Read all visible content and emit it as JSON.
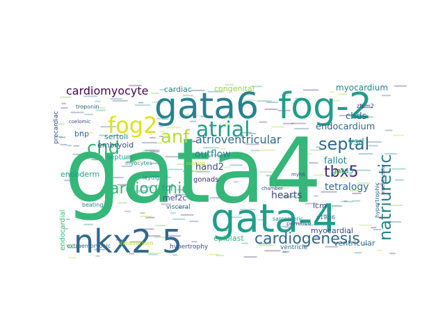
{
  "word_cloud": {
    "background": "#ffffff",
    "palette": {
      "green": "#35b779",
      "teal": "#1f9e89",
      "teal_blue": "#26828e",
      "blue": "#31688e",
      "indigo": "#3e4989",
      "purple": "#482878",
      "dark": "#440154",
      "lime": "#6ece58",
      "yellow": "#dde318",
      "yellow_green": "#b5de2b",
      "light_green": "#90d743"
    },
    "words": [
      {
        "text": "gata4",
        "color": "#35b779"
      },
      {
        "text": "gata6",
        "color": "#26828e"
      },
      {
        "text": "fog-2",
        "color": "#1f9e89"
      },
      {
        "text": "gata-4",
        "color": "#1f9e89"
      },
      {
        "text": "nkx2 5",
        "color": "#31688e"
      },
      {
        "text": "fog2",
        "color": "#dde318"
      },
      {
        "text": "atrial",
        "color": "#1f9e89"
      },
      {
        "text": "anf",
        "color": "#b5de2b"
      },
      {
        "text": "chd",
        "color": "#35b779"
      },
      {
        "text": "natriuretic",
        "color": "#26828e"
      },
      {
        "text": "septal",
        "color": "#31688e"
      },
      {
        "text": "cardiogenic",
        "color": "#35b779"
      },
      {
        "text": "cardiogenesis",
        "color": "#31688e"
      },
      {
        "text": "tbx5",
        "color": "#482878"
      },
      {
        "text": "cardiomyocyte",
        "color": "#440154"
      },
      {
        "text": "atrioventricular",
        "color": "#31688e"
      },
      {
        "text": "tetralogy",
        "color": "#31688e"
      },
      {
        "text": "hearts",
        "color": "#3e4989"
      },
      {
        "text": "endocardium",
        "color": "#31688e"
      },
      {
        "text": "fallot",
        "color": "#26828e"
      },
      {
        "text": "vsd",
        "color": "#1f9e89"
      },
      {
        "text": "chds",
        "color": "#31688e"
      },
      {
        "text": "myocardium",
        "color": "#26828e"
      },
      {
        "text": "cardiac",
        "color": "#26828e"
      },
      {
        "text": "congenital",
        "color": "#90d743"
      },
      {
        "text": "outflow",
        "color": "#26828e"
      },
      {
        "text": "hand2",
        "color": "#3e4989"
      },
      {
        "text": "tof",
        "color": "#1f9e89"
      },
      {
        "text": "mef2c",
        "color": "#3e4989"
      },
      {
        "text": "myocardial",
        "color": "#3e4989"
      },
      {
        "text": "ventricular",
        "color": "#31688e"
      },
      {
        "text": "gata5",
        "color": "#1f9e89"
      },
      {
        "text": "icm",
        "color": "#3e4989"
      },
      {
        "text": "sertoli",
        "color": "#26828e"
      },
      {
        "text": "embryoid",
        "color": "#3e4989"
      },
      {
        "text": "septum",
        "color": "#1f9e89"
      },
      {
        "text": "bnp",
        "color": "#31688e"
      },
      {
        "text": "endoderm",
        "color": "#1f9e89"
      },
      {
        "text": "precardiac",
        "color": "#3e4989"
      },
      {
        "text": "endocardial",
        "color": "#35b779"
      },
      {
        "text": "epiblast",
        "color": "#35b779"
      },
      {
        "text": "gonads",
        "color": "#482878"
      },
      {
        "text": "leydig",
        "color": "#26828e"
      },
      {
        "text": "visceral",
        "color": "#31688e"
      },
      {
        "text": "myocytes",
        "color": "#1f9e89"
      },
      {
        "text": "beating",
        "color": "#26828e"
      },
      {
        "text": "hypertrophy",
        "color": "#3e4989"
      },
      {
        "text": "extraembryonic",
        "color": "#31688e"
      },
      {
        "text": "transversum",
        "color": "#b5de2b"
      },
      {
        "text": "ventricle",
        "color": "#31688e"
      },
      {
        "text": "primitive",
        "color": "#3e4989"
      },
      {
        "text": "sarcomeric",
        "color": "#26828e"
      },
      {
        "text": "p19cl6",
        "color": "#31688e"
      },
      {
        "text": "chamber",
        "color": "#3e4989"
      },
      {
        "text": "myh6",
        "color": "#3e4989"
      },
      {
        "text": "troponin",
        "color": "#31688e"
      },
      {
        "text": "coelomic",
        "color": "#3e4989"
      },
      {
        "text": "asd",
        "color": "#6ece58"
      },
      {
        "text": "zfpm2",
        "color": "#482878"
      },
      {
        "text": "hypertrophic",
        "color": "#31688e"
      },
      {
        "text": "biventricular",
        "color": "#3e4989"
      },
      {
        "text": "cushion",
        "color": "#b5de2b"
      }
    ]
  }
}
